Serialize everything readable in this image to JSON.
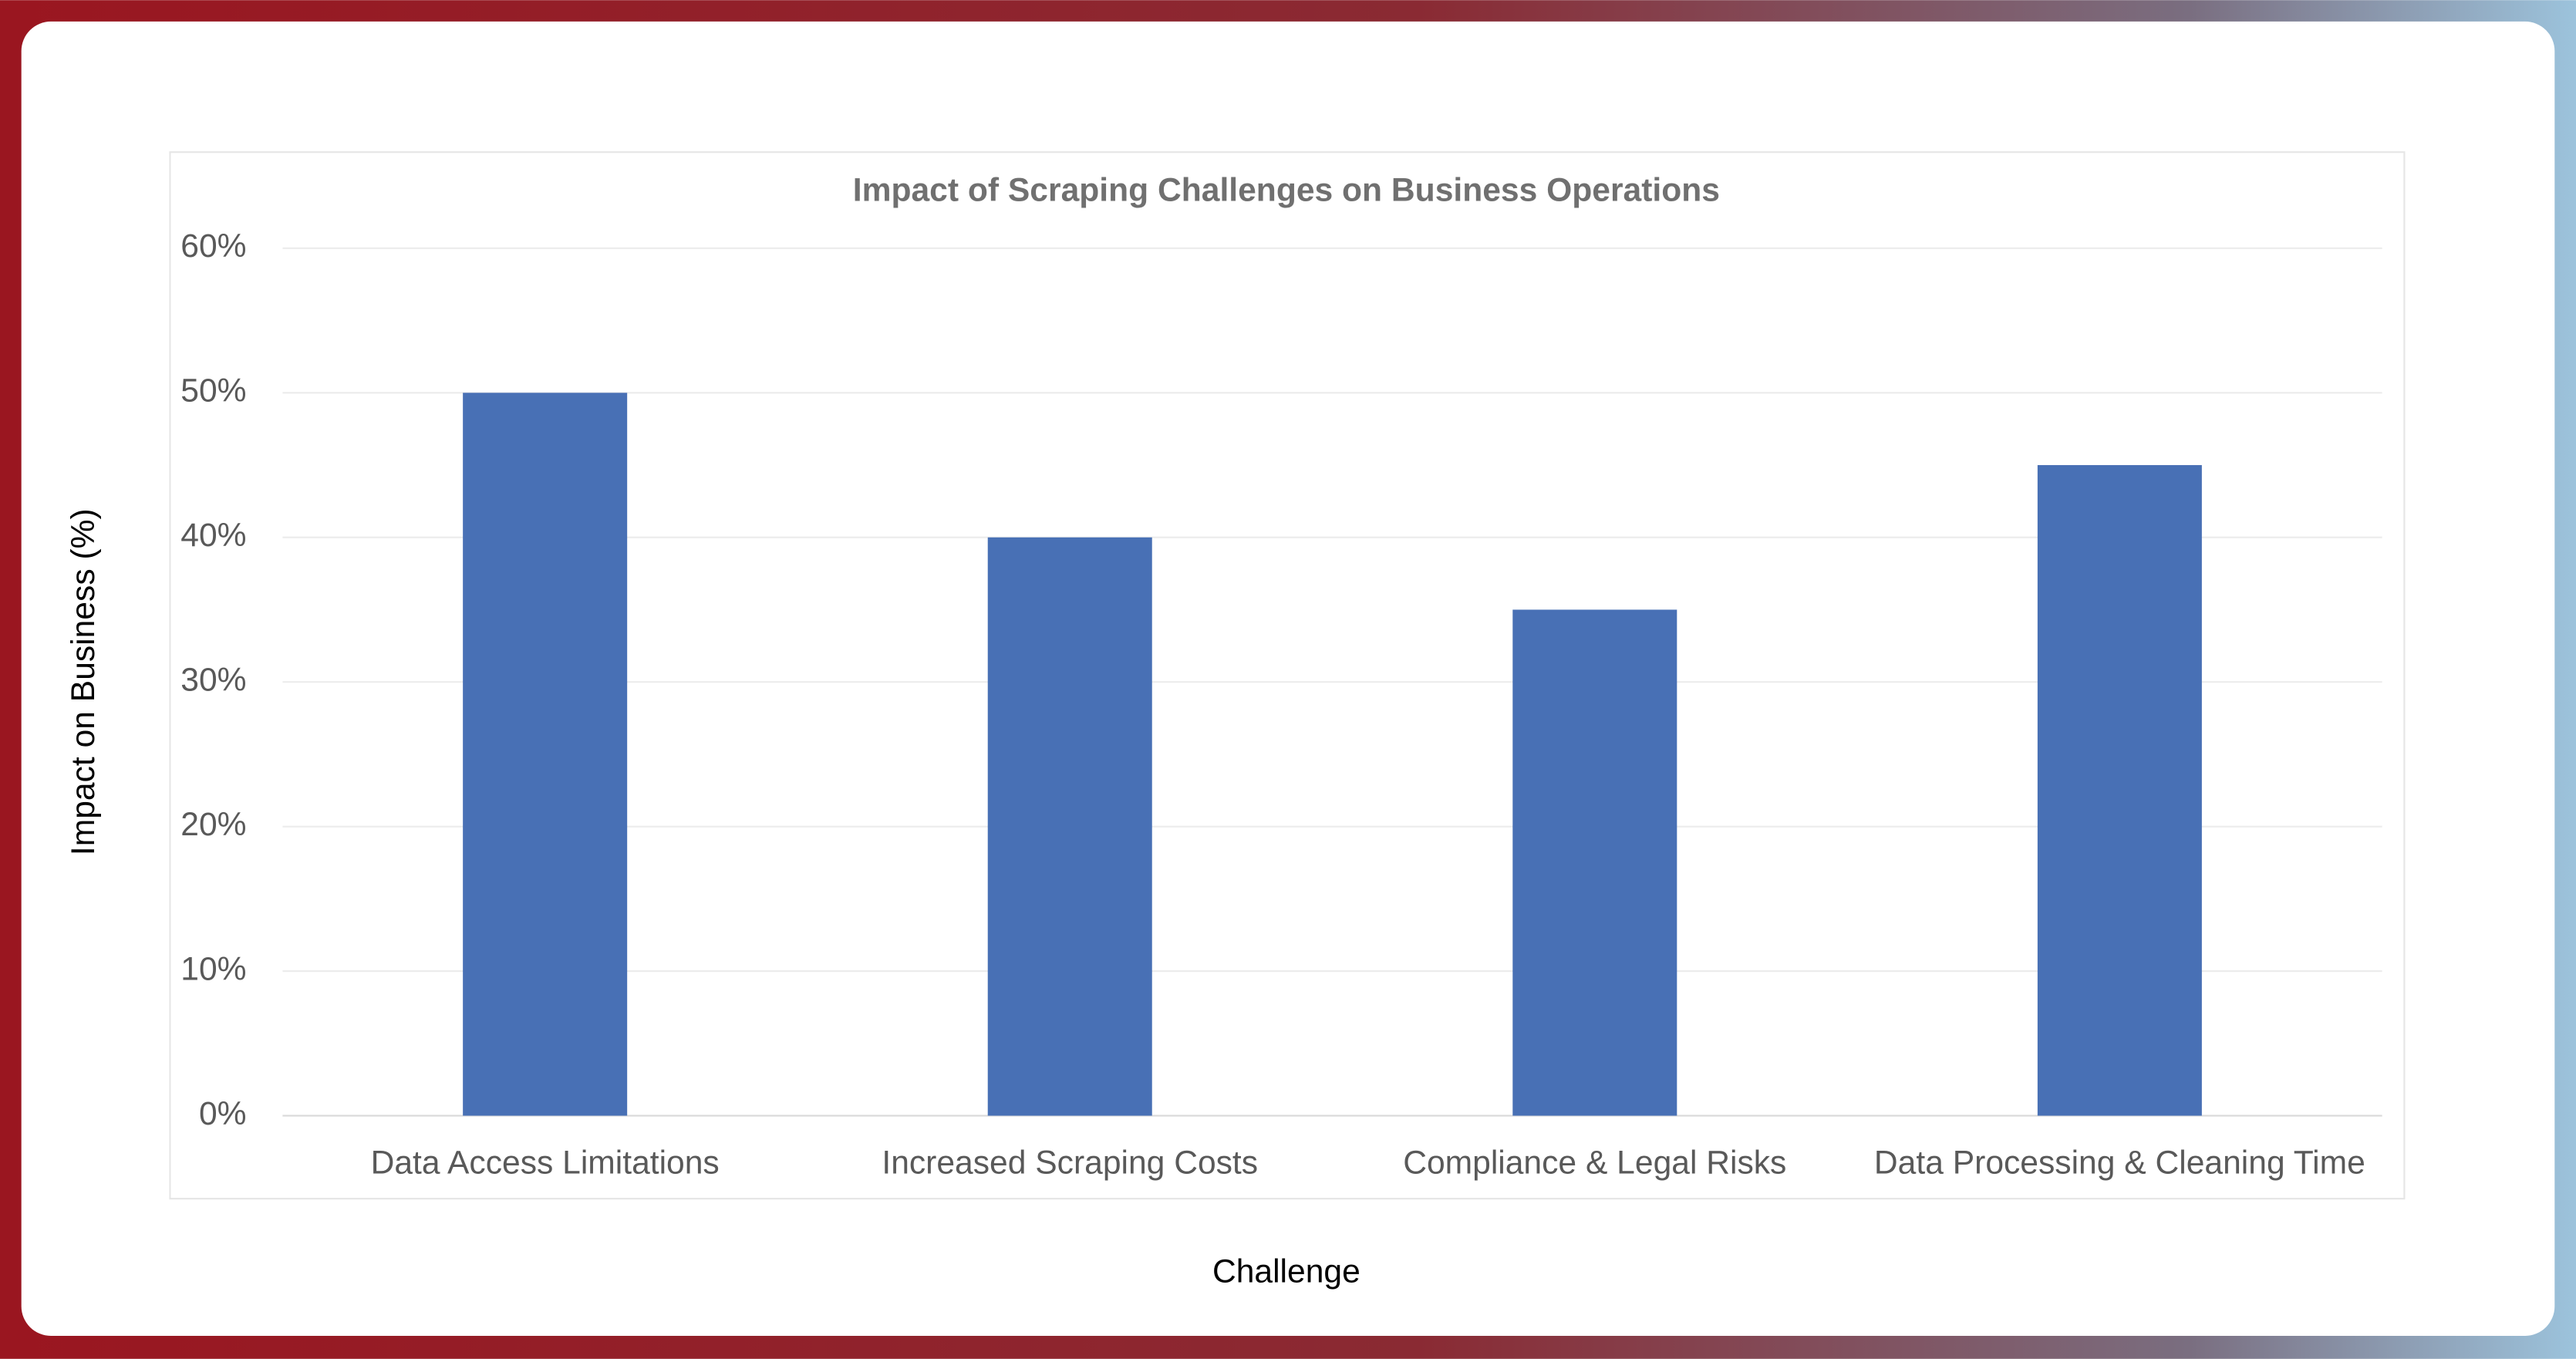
{
  "chart_data": {
    "type": "bar",
    "title": "Impact of Scraping Challenges on Business Operations",
    "x_label": "Challenge",
    "y_label": "Impact on Business (%)",
    "categories": [
      "Data Access Limitations",
      "Increased Scraping Costs",
      "Compliance & Legal Risks",
      "Data Processing & Cleaning Time"
    ],
    "values": [
      50,
      40,
      35,
      45
    ],
    "color": "#4870b5",
    "ylim": [
      0,
      60
    ],
    "yticks": [
      {
        "value": 0,
        "label": "0%"
      },
      {
        "value": 10,
        "label": "10%"
      },
      {
        "value": 20,
        "label": "20%"
      },
      {
        "value": 30,
        "label": "30%"
      },
      {
        "value": 40,
        "label": "40%"
      },
      {
        "value": 50,
        "label": "50%"
      },
      {
        "value": 60,
        "label": "60%"
      }
    ],
    "grid": true
  }
}
